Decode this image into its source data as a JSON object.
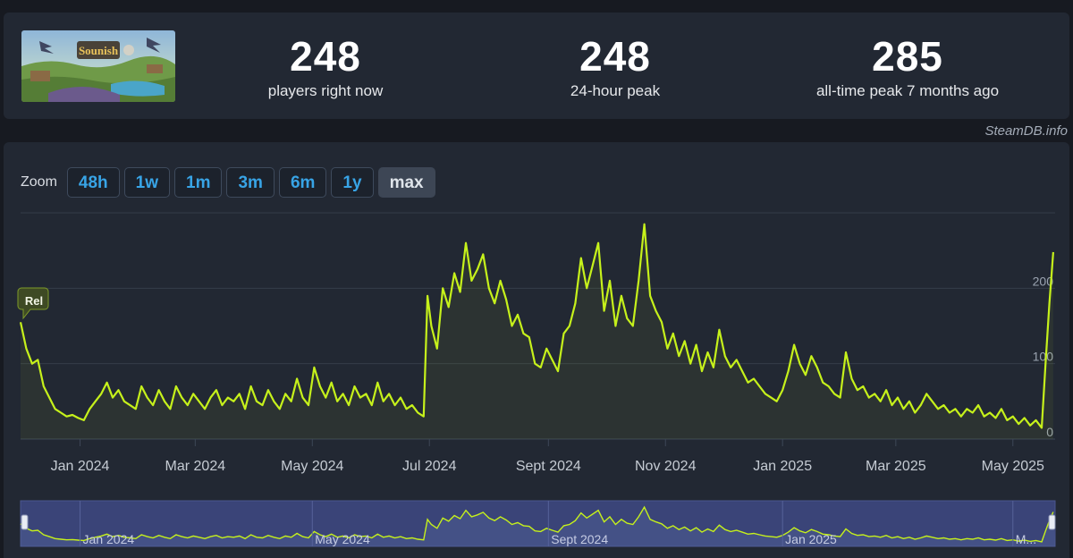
{
  "header": {
    "game_thumbnail_icon": "game-capsule-art",
    "stats": [
      {
        "value": "248",
        "label": "players right now"
      },
      {
        "value": "248",
        "label": "24-hour peak"
      },
      {
        "value": "285",
        "label": "all-time peak 7 months ago"
      }
    ]
  },
  "credit": "SteamDB.info",
  "zoom": {
    "label": "Zoom",
    "options": [
      "48h",
      "1w",
      "1m",
      "3m",
      "6m",
      "1y",
      "max"
    ],
    "active": "max"
  },
  "chart_data": {
    "type": "line",
    "title": "",
    "xlabel": "",
    "ylabel": "",
    "ylim": [
      0,
      300
    ],
    "x_range": [
      "2023-12-01",
      "2025-05-23"
    ],
    "x_tick_labels": [
      "Jan 2024",
      "Mar 2024",
      "May 2024",
      "Jul 2024",
      "Sept 2024",
      "Nov 2024",
      "Jan 2025",
      "Mar 2025",
      "May 2025"
    ],
    "y_ticks": [
      0,
      100,
      200
    ],
    "grid": true,
    "line_color": "#c6f11b",
    "annotation": "Rel",
    "navigator_tick_labels": [
      "Jan 2024",
      "May 2024",
      "Sept 2024",
      "Jan 2025",
      "M..."
    ],
    "series": [
      {
        "values": [
          [
            "2023-12-01",
            155
          ],
          [
            "2023-12-04",
            120
          ],
          [
            "2023-12-07",
            100
          ],
          [
            "2023-12-10",
            105
          ],
          [
            "2023-12-13",
            70
          ],
          [
            "2023-12-16",
            55
          ],
          [
            "2023-12-19",
            40
          ],
          [
            "2023-12-22",
            35
          ],
          [
            "2023-12-25",
            30
          ],
          [
            "2023-12-28",
            32
          ],
          [
            "2023-12-31",
            28
          ],
          [
            "2024-01-03",
            25
          ],
          [
            "2024-01-06",
            40
          ],
          [
            "2024-01-09",
            50
          ],
          [
            "2024-01-12",
            60
          ],
          [
            "2024-01-15",
            75
          ],
          [
            "2024-01-18",
            55
          ],
          [
            "2024-01-21",
            65
          ],
          [
            "2024-01-24",
            50
          ],
          [
            "2024-01-27",
            45
          ],
          [
            "2024-01-30",
            40
          ],
          [
            "2024-02-02",
            70
          ],
          [
            "2024-02-05",
            55
          ],
          [
            "2024-02-08",
            45
          ],
          [
            "2024-02-11",
            65
          ],
          [
            "2024-02-14",
            50
          ],
          [
            "2024-02-17",
            40
          ],
          [
            "2024-02-20",
            70
          ],
          [
            "2024-02-23",
            55
          ],
          [
            "2024-02-26",
            45
          ],
          [
            "2024-02-29",
            60
          ],
          [
            "2024-03-03",
            50
          ],
          [
            "2024-03-06",
            40
          ],
          [
            "2024-03-09",
            55
          ],
          [
            "2024-03-12",
            65
          ],
          [
            "2024-03-15",
            45
          ],
          [
            "2024-03-18",
            55
          ],
          [
            "2024-03-21",
            50
          ],
          [
            "2024-03-24",
            60
          ],
          [
            "2024-03-27",
            40
          ],
          [
            "2024-03-30",
            70
          ],
          [
            "2024-04-02",
            50
          ],
          [
            "2024-04-05",
            45
          ],
          [
            "2024-04-08",
            65
          ],
          [
            "2024-04-11",
            50
          ],
          [
            "2024-04-14",
            40
          ],
          [
            "2024-04-17",
            60
          ],
          [
            "2024-04-20",
            50
          ],
          [
            "2024-04-23",
            80
          ],
          [
            "2024-04-26",
            55
          ],
          [
            "2024-04-29",
            45
          ],
          [
            "2024-05-02",
            95
          ],
          [
            "2024-05-05",
            70
          ],
          [
            "2024-05-08",
            55
          ],
          [
            "2024-05-11",
            75
          ],
          [
            "2024-05-14",
            50
          ],
          [
            "2024-05-17",
            60
          ],
          [
            "2024-05-20",
            45
          ],
          [
            "2024-05-23",
            70
          ],
          [
            "2024-05-26",
            55
          ],
          [
            "2024-05-29",
            60
          ],
          [
            "2024-06-01",
            45
          ],
          [
            "2024-06-04",
            75
          ],
          [
            "2024-06-07",
            50
          ],
          [
            "2024-06-10",
            60
          ],
          [
            "2024-06-13",
            45
          ],
          [
            "2024-06-16",
            55
          ],
          [
            "2024-06-19",
            40
          ],
          [
            "2024-06-22",
            45
          ],
          [
            "2024-06-25",
            35
          ],
          [
            "2024-06-28",
            30
          ],
          [
            "2024-06-30",
            190
          ],
          [
            "2024-07-02",
            150
          ],
          [
            "2024-07-05",
            120
          ],
          [
            "2024-07-08",
            200
          ],
          [
            "2024-07-11",
            175
          ],
          [
            "2024-07-14",
            220
          ],
          [
            "2024-07-17",
            195
          ],
          [
            "2024-07-20",
            260
          ],
          [
            "2024-07-23",
            210
          ],
          [
            "2024-07-26",
            225
          ],
          [
            "2024-07-29",
            245
          ],
          [
            "2024-08-01",
            200
          ],
          [
            "2024-08-04",
            180
          ],
          [
            "2024-08-07",
            210
          ],
          [
            "2024-08-10",
            185
          ],
          [
            "2024-08-13",
            150
          ],
          [
            "2024-08-16",
            165
          ],
          [
            "2024-08-19",
            140
          ],
          [
            "2024-08-22",
            135
          ],
          [
            "2024-08-25",
            100
          ],
          [
            "2024-08-28",
            95
          ],
          [
            "2024-08-31",
            120
          ],
          [
            "2024-09-03",
            105
          ],
          [
            "2024-09-06",
            90
          ],
          [
            "2024-09-09",
            140
          ],
          [
            "2024-09-12",
            150
          ],
          [
            "2024-09-15",
            180
          ],
          [
            "2024-09-18",
            240
          ],
          [
            "2024-09-21",
            200
          ],
          [
            "2024-09-24",
            230
          ],
          [
            "2024-09-27",
            260
          ],
          [
            "2024-09-30",
            170
          ],
          [
            "2024-10-03",
            210
          ],
          [
            "2024-10-06",
            150
          ],
          [
            "2024-10-09",
            190
          ],
          [
            "2024-10-12",
            160
          ],
          [
            "2024-10-15",
            150
          ],
          [
            "2024-10-18",
            210
          ],
          [
            "2024-10-21",
            285
          ],
          [
            "2024-10-24",
            190
          ],
          [
            "2024-10-27",
            170
          ],
          [
            "2024-10-30",
            155
          ],
          [
            "2024-11-02",
            120
          ],
          [
            "2024-11-05",
            140
          ],
          [
            "2024-11-08",
            110
          ],
          [
            "2024-11-11",
            130
          ],
          [
            "2024-11-14",
            100
          ],
          [
            "2024-11-17",
            125
          ],
          [
            "2024-11-20",
            90
          ],
          [
            "2024-11-23",
            115
          ],
          [
            "2024-11-26",
            95
          ],
          [
            "2024-11-29",
            145
          ],
          [
            "2024-12-02",
            110
          ],
          [
            "2024-12-05",
            95
          ],
          [
            "2024-12-08",
            105
          ],
          [
            "2024-12-11",
            90
          ],
          [
            "2024-12-14",
            75
          ],
          [
            "2024-12-17",
            80
          ],
          [
            "2024-12-20",
            70
          ],
          [
            "2024-12-23",
            60
          ],
          [
            "2024-12-26",
            55
          ],
          [
            "2024-12-29",
            50
          ],
          [
            "2025-01-01",
            65
          ],
          [
            "2025-01-04",
            90
          ],
          [
            "2025-01-07",
            125
          ],
          [
            "2025-01-10",
            100
          ],
          [
            "2025-01-13",
            85
          ],
          [
            "2025-01-16",
            110
          ],
          [
            "2025-01-19",
            95
          ],
          [
            "2025-01-22",
            75
          ],
          [
            "2025-01-25",
            70
          ],
          [
            "2025-01-28",
            60
          ],
          [
            "2025-01-31",
            55
          ],
          [
            "2025-02-03",
            115
          ],
          [
            "2025-02-06",
            80
          ],
          [
            "2025-02-09",
            65
          ],
          [
            "2025-02-12",
            70
          ],
          [
            "2025-02-15",
            55
          ],
          [
            "2025-02-18",
            60
          ],
          [
            "2025-02-21",
            50
          ],
          [
            "2025-02-24",
            65
          ],
          [
            "2025-02-27",
            45
          ],
          [
            "2025-03-02",
            55
          ],
          [
            "2025-03-05",
            40
          ],
          [
            "2025-03-08",
            50
          ],
          [
            "2025-03-11",
            35
          ],
          [
            "2025-03-14",
            45
          ],
          [
            "2025-03-17",
            60
          ],
          [
            "2025-03-20",
            50
          ],
          [
            "2025-03-23",
            40
          ],
          [
            "2025-03-26",
            45
          ],
          [
            "2025-03-29",
            35
          ],
          [
            "2025-04-01",
            40
          ],
          [
            "2025-04-04",
            30
          ],
          [
            "2025-04-07",
            40
          ],
          [
            "2025-04-10",
            35
          ],
          [
            "2025-04-13",
            45
          ],
          [
            "2025-04-16",
            30
          ],
          [
            "2025-04-19",
            35
          ],
          [
            "2025-04-22",
            28
          ],
          [
            "2025-04-25",
            40
          ],
          [
            "2025-04-28",
            25
          ],
          [
            "2025-05-01",
            30
          ],
          [
            "2025-05-04",
            20
          ],
          [
            "2025-05-07",
            28
          ],
          [
            "2025-05-10",
            18
          ],
          [
            "2025-05-13",
            25
          ],
          [
            "2025-05-16",
            15
          ],
          [
            "2025-05-18",
            100
          ],
          [
            "2025-05-20",
            180
          ],
          [
            "2025-05-22",
            248
          ]
        ]
      }
    ]
  }
}
